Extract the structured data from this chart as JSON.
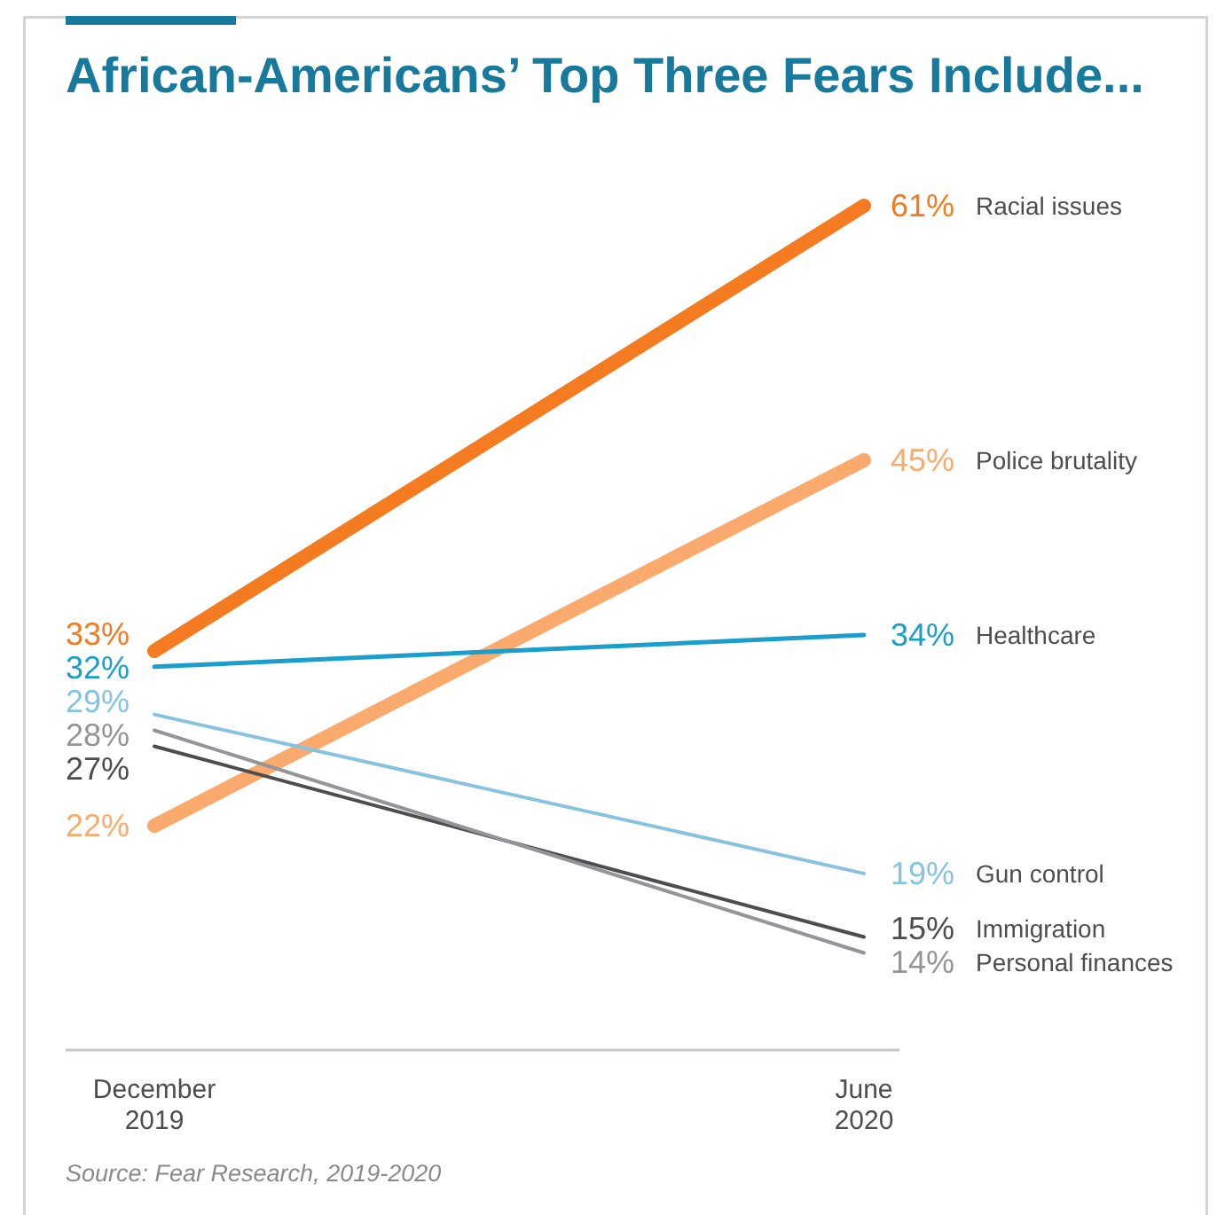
{
  "chart_data": {
    "type": "line",
    "title": "African-Americans’ Top Three Fears Include...",
    "categories": [
      "December 2019",
      "June 2020"
    ],
    "series": [
      {
        "name": "Racial issues",
        "color": "#f47b20",
        "values": [
          33,
          61
        ],
        "value_labels": [
          "33%",
          "61%"
        ]
      },
      {
        "name": "Police brutality",
        "color": "#fbaa6e",
        "values": [
          22,
          45
        ],
        "value_labels": [
          "22%",
          "45%"
        ]
      },
      {
        "name": "Healthcare",
        "color": "#1a9ecb",
        "values": [
          32,
          34
        ],
        "value_labels": [
          "32%",
          "34%"
        ]
      },
      {
        "name": "Gun control",
        "color": "#87c3e0",
        "values": [
          29,
          19
        ],
        "value_labels": [
          "29%",
          "19%"
        ]
      },
      {
        "name": "Immigration",
        "color": "#4d4d4f",
        "values": [
          27,
          15
        ],
        "value_labels": [
          "27%",
          "15%"
        ]
      },
      {
        "name": "Personal finances",
        "color": "#939598",
        "values": [
          28,
          14
        ],
        "value_labels": [
          "28%",
          "14%"
        ]
      }
    ],
    "annotations": [
      "Source: Fear Research, 2019-2020"
    ]
  }
}
